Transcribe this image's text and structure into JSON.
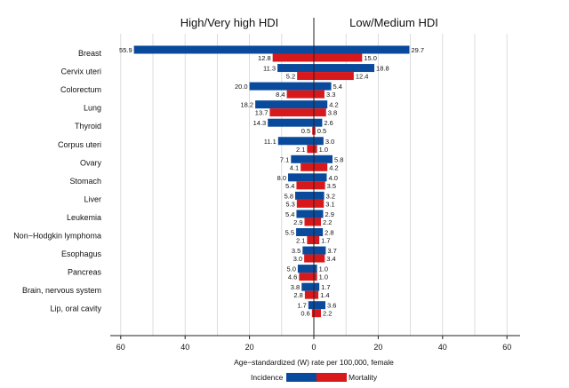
{
  "chart_data": {
    "type": "bar",
    "orientation": "horizontal-butterfly",
    "left_panel_title": "High/Very high HDI",
    "right_panel_title": "Low/Medium HDI",
    "xlabel": "Age−standardized (W) rate per 100,000, female",
    "xlim": [
      -60,
      60
    ],
    "x_ticks": [
      -60,
      -40,
      -20,
      0,
      20,
      40,
      60
    ],
    "x_tick_labels": [
      "60",
      "40",
      "20",
      "0",
      "20",
      "40",
      "60"
    ],
    "grid": true,
    "legend_position": "bottom",
    "categories": [
      "Breast",
      "Cervix uteri",
      "Colorectum",
      "Lung",
      "Thyroid",
      "Corpus uteri",
      "Ovary",
      "Stomach",
      "Liver",
      "Leukemia",
      "Non−Hodgkin lymphoma",
      "Esophagus",
      "Pancreas",
      "Brain, nervous system",
      "Lip, oral cavity"
    ],
    "series": [
      {
        "name": "Incidence",
        "panel": "High/Very high HDI",
        "color": "#0a4a9c",
        "values": [
          55.9,
          11.3,
          20.0,
          18.2,
          14.3,
          11.1,
          7.1,
          8.0,
          5.8,
          5.4,
          5.5,
          3.5,
          5.0,
          3.8,
          1.7
        ],
        "labels": [
          "55.9",
          "11.3",
          "20.0",
          "18.2",
          "14.3",
          "11.1",
          "7.1",
          "8.0",
          "5.8",
          "5.4",
          "5.5",
          "3.5",
          "5.0",
          "3.8",
          "1.7"
        ]
      },
      {
        "name": "Mortality",
        "panel": "High/Very high HDI",
        "color": "#d7191c",
        "values": [
          12.8,
          5.2,
          8.4,
          13.7,
          0.5,
          2.1,
          4.1,
          5.4,
          5.3,
          2.9,
          2.1,
          3.0,
          4.6,
          2.8,
          0.6
        ],
        "labels": [
          "12.8",
          "5.2",
          "8.4",
          "13.7",
          "0.5",
          "2.1",
          "4.1",
          "5.4",
          "5.3",
          "2.9",
          "2.1",
          "3.0",
          "4.6",
          "2.8",
          "0.6"
        ]
      },
      {
        "name": "Incidence",
        "panel": "Low/Medium HDI",
        "color": "#0a4a9c",
        "values": [
          29.7,
          18.8,
          5.4,
          4.2,
          2.6,
          3.0,
          5.8,
          4.0,
          3.2,
          2.9,
          2.8,
          3.7,
          1.0,
          1.7,
          3.6
        ],
        "labels": [
          "29.7",
          "18.8",
          "5.4",
          "4.2",
          "2.6",
          "3.0",
          "5.8",
          "4.0",
          "3.2",
          "2.9",
          "2.8",
          "3.7",
          "1.0",
          "1.7",
          "3.6"
        ]
      },
      {
        "name": "Mortality",
        "panel": "Low/Medium HDI",
        "color": "#d7191c",
        "values": [
          15.0,
          12.4,
          3.3,
          3.8,
          0.5,
          1.0,
          4.2,
          3.5,
          3.1,
          2.2,
          1.7,
          3.4,
          1.0,
          1.4,
          2.2
        ],
        "labels": [
          "15.0",
          "12.4",
          "3.3",
          "3.8",
          "0.5",
          "1.0",
          "4.2",
          "3.5",
          "3.1",
          "2.2",
          "1.7",
          "3.4",
          "1.0",
          "1.4",
          "2.2"
        ]
      }
    ],
    "legend": [
      {
        "label": "Incidence",
        "color": "#0a4a9c"
      },
      {
        "label": "Mortality",
        "color": "#d7191c"
      }
    ]
  }
}
